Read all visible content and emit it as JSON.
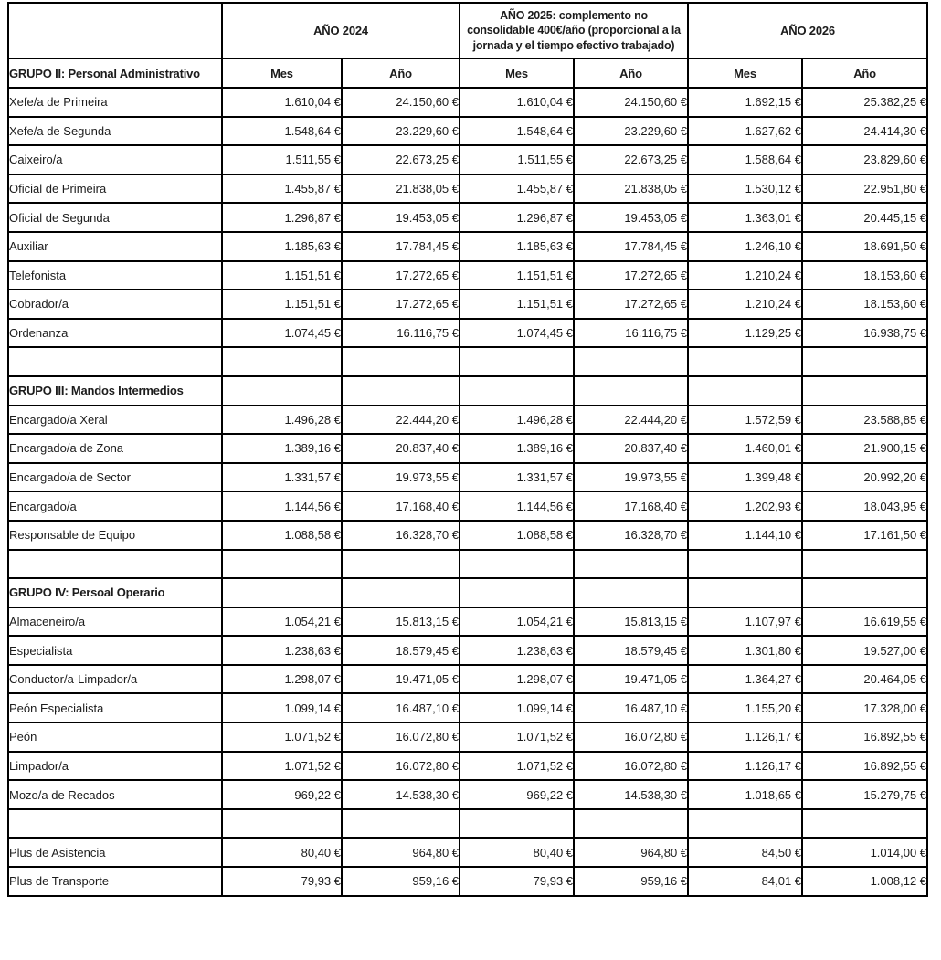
{
  "table": {
    "corner_label": "",
    "year_columns": [
      {
        "label": "AÑO 2024"
      },
      {
        "label": "AÑO 2025: complemento no consolidable 400€/año (proporcional a la jornada y el tiempo efectivo trabajado)"
      },
      {
        "label": "AÑO 2026"
      }
    ],
    "first_group_header": "GRUPO II: Personal Administrativo",
    "sub_headers": [
      "Mes",
      "Año",
      "Mes",
      "Año",
      "Mes",
      "Año"
    ],
    "rows": [
      {
        "type": "data",
        "label": "Xefe/a de Primeira",
        "values": [
          "1.610,04 €",
          "24.150,60 €",
          "1.610,04 €",
          "24.150,60 €",
          "1.692,15 €",
          "25.382,25 €"
        ]
      },
      {
        "type": "data",
        "label": "Xefe/a de Segunda",
        "values": [
          "1.548,64 €",
          "23.229,60 €",
          "1.548,64 €",
          "23.229,60 €",
          "1.627,62 €",
          "24.414,30 €"
        ]
      },
      {
        "type": "data",
        "label": "Caixeiro/a",
        "values": [
          "1.511,55 €",
          "22.673,25 €",
          "1.511,55 €",
          "22.673,25 €",
          "1.588,64 €",
          "23.829,60 €"
        ]
      },
      {
        "type": "data",
        "label": "Oficial de Primeira",
        "values": [
          "1.455,87 €",
          "21.838,05 €",
          "1.455,87 €",
          "21.838,05 €",
          "1.530,12 €",
          "22.951,80 €"
        ]
      },
      {
        "type": "data",
        "label": "Oficial de Segunda",
        "values": [
          "1.296,87 €",
          "19.453,05 €",
          "1.296,87 €",
          "19.453,05 €",
          "1.363,01 €",
          "20.445,15 €"
        ]
      },
      {
        "type": "data",
        "label": "Auxiliar",
        "values": [
          "1.185,63 €",
          "17.784,45 €",
          "1.185,63 €",
          "17.784,45 €",
          "1.246,10 €",
          "18.691,50 €"
        ]
      },
      {
        "type": "data",
        "label": "Telefonista",
        "values": [
          "1.151,51 €",
          "17.272,65 €",
          "1.151,51 €",
          "17.272,65 €",
          "1.210,24 €",
          "18.153,60 €"
        ]
      },
      {
        "type": "data",
        "label": "Cobrador/a",
        "values": [
          "1.151,51 €",
          "17.272,65 €",
          "1.151,51 €",
          "17.272,65 €",
          "1.210,24 €",
          "18.153,60 €"
        ]
      },
      {
        "type": "data",
        "label": "Ordenanza",
        "values": [
          "1.074,45 €",
          "16.116,75 €",
          "1.074,45 €",
          "16.116,75 €",
          "1.129,25 €",
          "16.938,75 €"
        ]
      },
      {
        "type": "spacer"
      },
      {
        "type": "group",
        "label": "GRUPO III: Mandos Intermedios"
      },
      {
        "type": "data",
        "label": "Encargado/a Xeral",
        "values": [
          "1.496,28 €",
          "22.444,20 €",
          "1.496,28 €",
          "22.444,20 €",
          "1.572,59 €",
          "23.588,85 €"
        ]
      },
      {
        "type": "data",
        "label": "Encargado/a de Zona",
        "values": [
          "1.389,16 €",
          "20.837,40 €",
          "1.389,16 €",
          "20.837,40 €",
          "1.460,01 €",
          "21.900,15 €"
        ]
      },
      {
        "type": "data",
        "label": "Encargado/a de Sector",
        "values": [
          "1.331,57 €",
          "19.973,55 €",
          "1.331,57 €",
          "19.973,55 €",
          "1.399,48 €",
          "20.992,20 €"
        ]
      },
      {
        "type": "data",
        "label": "Encargado/a",
        "values": [
          "1.144,56 €",
          "17.168,40 €",
          "1.144,56 €",
          "17.168,40 €",
          "1.202,93 €",
          "18.043,95 €"
        ]
      },
      {
        "type": "data",
        "label": "Responsable de Equipo",
        "values": [
          "1.088,58 €",
          "16.328,70 €",
          "1.088,58 €",
          "16.328,70 €",
          "1.144,10 €",
          "17.161,50 €"
        ]
      },
      {
        "type": "spacer"
      },
      {
        "type": "group",
        "label": "GRUPO IV: Persoal Operario"
      },
      {
        "type": "data",
        "label": "Almaceneiro/a",
        "values": [
          "1.054,21 €",
          "15.813,15 €",
          "1.054,21 €",
          "15.813,15 €",
          "1.107,97 €",
          "16.619,55 €"
        ]
      },
      {
        "type": "data",
        "label": "Especialista",
        "values": [
          "1.238,63 €",
          "18.579,45 €",
          "1.238,63 €",
          "18.579,45 €",
          "1.301,80 €",
          "19.527,00 €"
        ]
      },
      {
        "type": "data",
        "label": "Conductor/a-Limpador/a",
        "values": [
          "1.298,07 €",
          "19.471,05 €",
          "1.298,07 €",
          "19.471,05 €",
          "1.364,27 €",
          "20.464,05 €"
        ]
      },
      {
        "type": "data",
        "label": "Peón Especialista",
        "values": [
          "1.099,14 €",
          "16.487,10 €",
          "1.099,14 €",
          "16.487,10 €",
          "1.155,20 €",
          "17.328,00 €"
        ]
      },
      {
        "type": "data",
        "label": "Peón",
        "values": [
          "1.071,52 €",
          "16.072,80 €",
          "1.071,52 €",
          "16.072,80 €",
          "1.126,17 €",
          "16.892,55 €"
        ]
      },
      {
        "type": "data",
        "label": "Limpador/a",
        "values": [
          "1.071,52 €",
          "16.072,80 €",
          "1.071,52 €",
          "16.072,80 €",
          "1.126,17 €",
          "16.892,55 €"
        ]
      },
      {
        "type": "data",
        "label": "Mozo/a de Recados",
        "values": [
          "969,22 €",
          "14.538,30 €",
          "969,22 €",
          "14.538,30 €",
          "1.018,65 €",
          "15.279,75 €"
        ]
      },
      {
        "type": "spacer"
      },
      {
        "type": "data",
        "label": "Plus de Asistencia",
        "values": [
          "80,40 €",
          "964,80 €",
          "80,40 €",
          "964,80 €",
          "84,50 €",
          "1.014,00 €"
        ]
      },
      {
        "type": "data",
        "label": "Plus de Transporte",
        "values": [
          "79,93 €",
          "959,16 €",
          "79,93 €",
          "959,16 €",
          "84,01 €",
          "1.008,12 €"
        ]
      }
    ]
  },
  "colors": {
    "border": "#000000",
    "text": "#1c1c1c",
    "background": "#ffffff"
  }
}
